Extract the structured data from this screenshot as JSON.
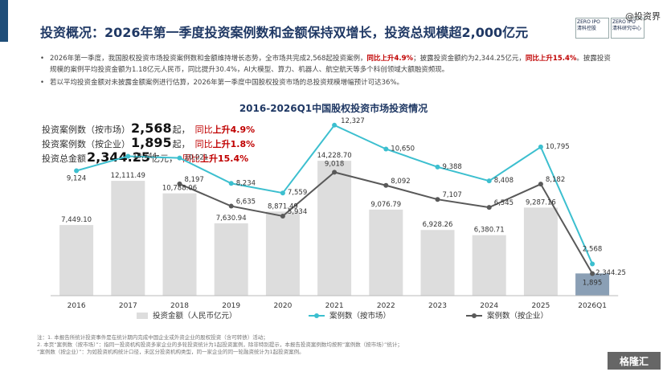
{
  "title": "投资概况：2026年第一季度投资案例数和金额保持双增长，投资总规模超2,000亿元",
  "logo": {
    "left_top": "ZERO IPO",
    "left_bottom": "清科控股",
    "right_top": "ZERO IPO",
    "right_bottom": "清科研究中心"
  },
  "watermark": "@投资界",
  "bullets": [
    {
      "before": "2026年第一季度，我国股权投资市场投资案例数和金额维持增长态势，全市场共完成2,568起投资案例，",
      "red1": "同比上升4.9%",
      "middle": "；披露投资金额约为2,344.25亿元，",
      "red2": "同比上升15.4%",
      "after": "。披露投资规模的案例平均投资金额为1.18亿元人民币，同比提升30.4%，AI大模型、算力、机器人、航空航天等多个科创领域大额融资频现。"
    },
    {
      "text": "若以平均投资金额对未披露金额案例进行估算，2026年第一季度中国股权投资市场的总投资规模增幅预计可达36%。"
    }
  ],
  "stats": [
    {
      "label": "投资案例数（按市场）",
      "value": "2,568",
      "unit": "起，",
      "yoy_prefix": "同比",
      "yoy": "上升4.9%"
    },
    {
      "label": "投资案例数（按企业）",
      "value": "1,895",
      "unit": "起，",
      "yoy_prefix": "同比",
      "yoy": "上升1.8%"
    },
    {
      "label": "投资总金额",
      "value": "2,344.25",
      "unit": "亿元，",
      "yoy_prefix": "同比",
      "yoy": "上升15.4%"
    }
  ],
  "chart_data": {
    "type": "bar",
    "title": "2016-2026Q1中国股权投资市场投资情况",
    "categories": [
      "2016",
      "2017",
      "2018",
      "2019",
      "2020",
      "2021",
      "2022",
      "2023",
      "2024",
      "2025",
      "2026Q1"
    ],
    "series": [
      {
        "name": "投资金额（人民币亿元）",
        "type": "bar",
        "values": [
          7449.1,
          12111.49,
          10788.06,
          7630.94,
          8871.49,
          14228.7,
          9076.79,
          6928.26,
          6380.71,
          9287.16,
          2344.25
        ],
        "labels": [
          "7,449.10",
          "12,111.49",
          "10,788.06",
          "7,630.94",
          "8,871.49",
          "14,228.70",
          "9,076.79",
          "6,928.26",
          "6,380.71",
          "9,287.16",
          "2,344.25"
        ]
      },
      {
        "name": "案例数（按市场）",
        "type": "line",
        "values": [
          9124,
          10144,
          10021,
          8234,
          7559,
          12327,
          10650,
          9388,
          8408,
          10795,
          2568
        ],
        "labels": [
          "9,124",
          "10,144",
          "10,021",
          "8,234",
          "7,559",
          "12,327",
          "10,650",
          "9,388",
          "8,408",
          "10,795",
          "2,568"
        ]
      },
      {
        "name": "案例数（按企业）",
        "type": "line",
        "values": [
          null,
          null,
          8197,
          6635,
          5934,
          9018,
          8092,
          7107,
          6545,
          8182,
          1895
        ],
        "labels": [
          "",
          "",
          "8,197",
          "6,635",
          "5,934",
          "9,018",
          "8,092",
          "7,107",
          "6,545",
          "8,182",
          "1,895"
        ]
      }
    ],
    "colors": {
      "bar": "#dddddd",
      "bar_last": "#8a9fb5",
      "market_line": "#3cbfcf",
      "enterprise_line": "#595959"
    },
    "legend_position": "bottom",
    "grid": false
  },
  "footnote": [
    "注：1. 本报告所统计投资事件是在统计期内完成中国企业或外资企业的股权投资（含可转债）活动；",
    "2. 本页“案例数（按市场）”：指同一投资机构投资多家企业的多轮投资统计为1起投资案例，除非特别提示，本报告投资案例数均按照“案例数（按市场）”统计；",
    "“案例数（按企业）”：为如投资机构统计口径，未区分投资机构类型，同一家企业的同一轮融资统计为1起投资案例。"
  ],
  "brand": "格隆汇"
}
